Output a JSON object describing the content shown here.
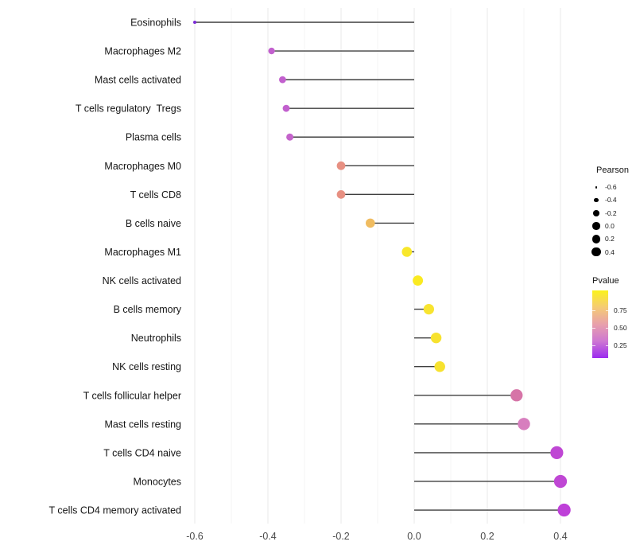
{
  "chart_data": {
    "type": "lollipop",
    "title": "",
    "xlabel": "",
    "ylabel": "",
    "baseline": 0.0,
    "x_axis": {
      "range": [
        -0.65,
        0.47
      ],
      "ticks": [
        -0.6,
        -0.4,
        -0.2,
        0.0,
        0.2,
        0.4
      ],
      "tick_labels": [
        "-0.6",
        "-0.4",
        "-0.2",
        "0.0",
        "0.2",
        "0.4"
      ],
      "minor_ticks": [
        -0.5,
        -0.3,
        -0.1,
        0.1,
        0.3
      ]
    },
    "grid": "vertical major and minor lines only",
    "legend_position": "right",
    "points": [
      {
        "label": "Eosinophils",
        "pearson": -0.6,
        "color": "#7B2BD6"
      },
      {
        "label": "Macrophages M2",
        "pearson": -0.39,
        "color": "#C260CE"
      },
      {
        "label": "Mast cells activated",
        "pearson": -0.36,
        "color": "#C260CE"
      },
      {
        "label": "T cells regulatory  Tregs",
        "pearson": -0.35,
        "color": "#C260CE"
      },
      {
        "label": "Plasma cells",
        "pearson": -0.34,
        "color": "#C463CB"
      },
      {
        "label": "Macrophages M0",
        "pearson": -0.2,
        "color": "#E79082"
      },
      {
        "label": "T cells CD8",
        "pearson": -0.2,
        "color": "#E79082"
      },
      {
        "label": "B cells naive",
        "pearson": -0.12,
        "color": "#F0BC60"
      },
      {
        "label": "Macrophages M1",
        "pearson": -0.02,
        "color": "#F8E72B"
      },
      {
        "label": "NK cells activated",
        "pearson": 0.01,
        "color": "#FAEA21"
      },
      {
        "label": "B cells memory",
        "pearson": 0.04,
        "color": "#F8E430"
      },
      {
        "label": "Neutrophils",
        "pearson": 0.06,
        "color": "#F7E22F"
      },
      {
        "label": "NK cells resting",
        "pearson": 0.07,
        "color": "#F7E22F"
      },
      {
        "label": "T cells follicular helper",
        "pearson": 0.28,
        "color": "#D674A7"
      },
      {
        "label": "Mast cells resting",
        "pearson": 0.3,
        "color": "#D77EBE"
      },
      {
        "label": "T cells CD4 naive",
        "pearson": 0.39,
        "color": "#BF47D4"
      },
      {
        "label": "Monocytes",
        "pearson": 0.4,
        "color": "#BF47D4"
      },
      {
        "label": "T cells CD4 memory activated",
        "pearson": 0.41,
        "color": "#BE40D8"
      }
    ],
    "legend_size": {
      "title": "Pearson",
      "entries": [
        {
          "label": "-0.6",
          "value": -0.6
        },
        {
          "label": "-0.4",
          "value": -0.4
        },
        {
          "label": "-0.2",
          "value": -0.2
        },
        {
          "label": "0.0",
          "value": 0.0
        },
        {
          "label": "0.2",
          "value": 0.2
        },
        {
          "label": "0.4",
          "value": 0.4
        }
      ]
    },
    "legend_color": {
      "title": "Pvalue",
      "tick_labels": [
        "0.75",
        "0.50",
        "0.25"
      ],
      "gradient_top_to_bottom": [
        "#FBF21C",
        "#F5CB74",
        "#E8A0AB",
        "#CE77D2",
        "#9C2BEF"
      ]
    }
  },
  "styles": {
    "stem_color": "#3F3F3F",
    "grid_major_color": "#E9E9E9",
    "grid_minor_color": "#F4F4F4",
    "axis_text_color": "#4A4A4A",
    "category_text_color": "#151515",
    "legend_dot_color": "#000000",
    "background": "#FFFFFF"
  }
}
